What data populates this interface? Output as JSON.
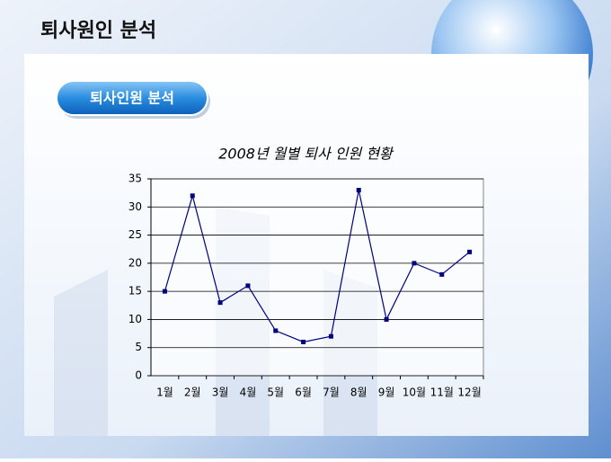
{
  "slide_title": "퇴사원인 분석",
  "section_label": "퇴사인원 분석",
  "chart_data": {
    "type": "line",
    "title": "2008년 월별 퇴사 인원 현황",
    "categories": [
      "1월",
      "2월",
      "3월",
      "4월",
      "5월",
      "6월",
      "7월",
      "8월",
      "9월",
      "10월",
      "11월",
      "12월"
    ],
    "values": [
      15,
      32,
      13,
      16,
      8,
      6,
      7,
      33,
      10,
      20,
      18,
      22
    ],
    "color": "#000080",
    "ylim": [
      0,
      35
    ],
    "yticks": [
      0,
      5,
      10,
      15,
      20,
      25,
      30,
      35
    ],
    "grid": true
  }
}
